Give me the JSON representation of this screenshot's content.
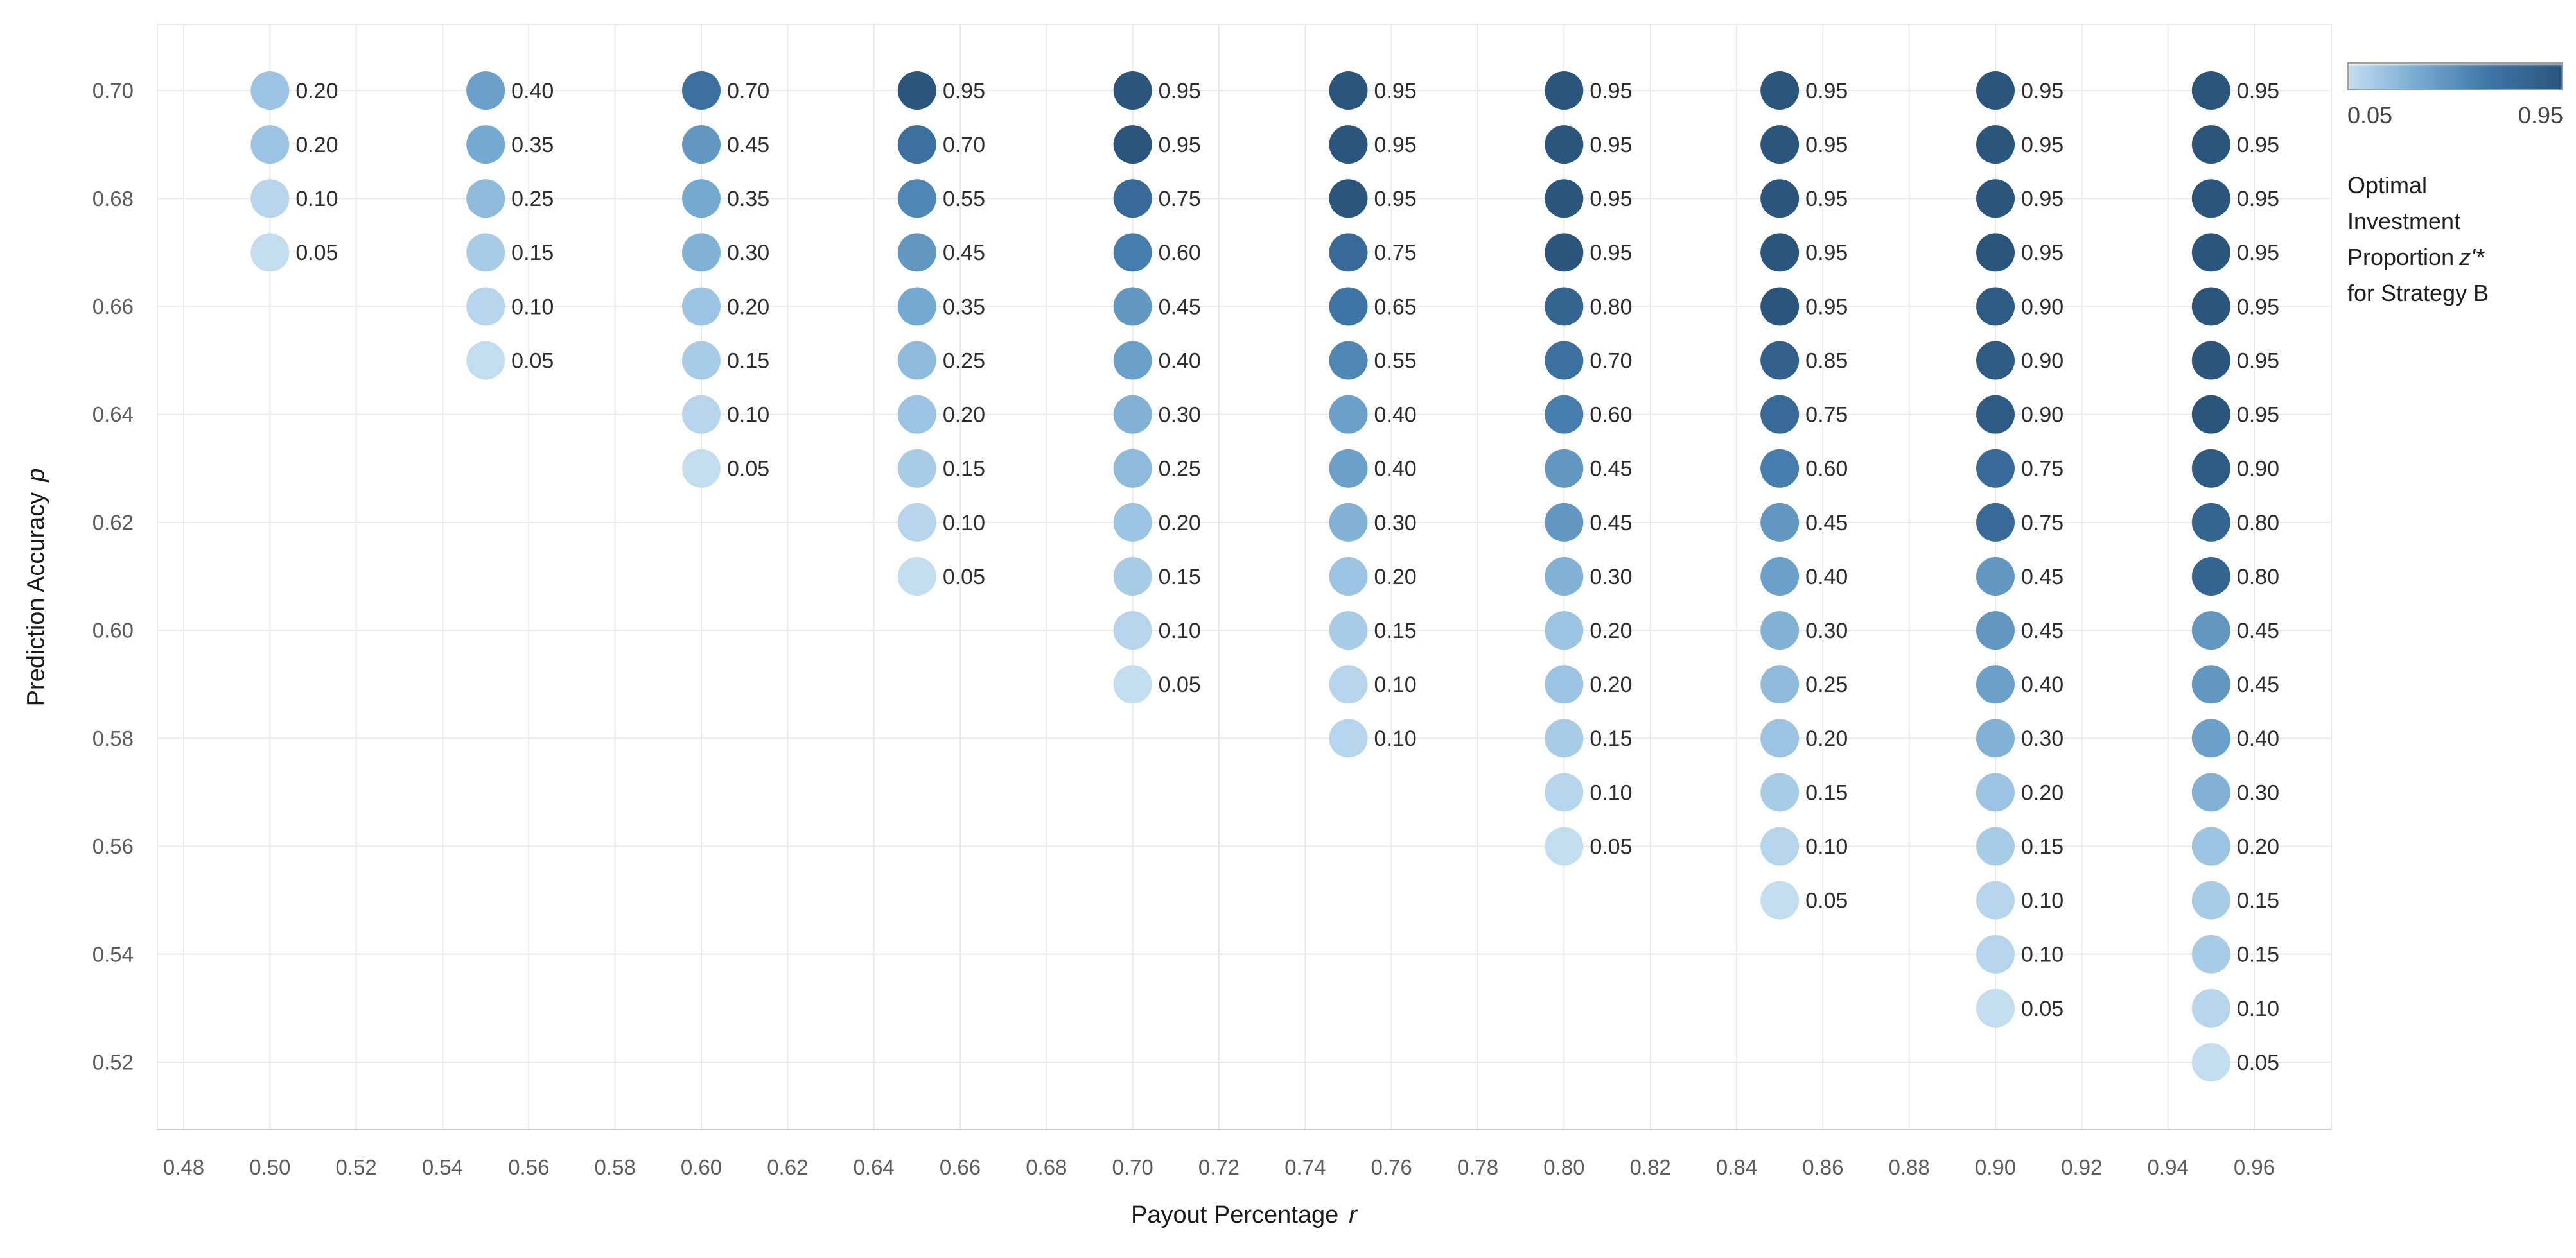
{
  "chart_data": {
    "type": "scatter",
    "description": "Labeled dot matrix of optimal investment proportion by payout percentage and prediction accuracy",
    "xlabel": {
      "text": "Payout Percentage",
      "symbol": "r"
    },
    "ylabel": {
      "text": "Prediction Accuracy",
      "symbol": "p"
    },
    "x_axis": {
      "min": 0.48,
      "max": 0.96,
      "tick_labels": [
        "0.48",
        "0.50",
        "0.52",
        "0.54",
        "0.56",
        "0.58",
        "0.60",
        "0.62",
        "0.64",
        "0.66",
        "0.68",
        "0.70",
        "0.72",
        "0.74",
        "0.76",
        "0.78",
        "0.80",
        "0.82",
        "0.84",
        "0.86",
        "0.88",
        "0.90",
        "0.92",
        "0.94",
        "0.96"
      ]
    },
    "y_axis": {
      "min": 0.52,
      "max": 0.7,
      "tick_labels": [
        "0.70",
        "0.68",
        "0.66",
        "0.64",
        "0.62",
        "0.60",
        "0.58",
        "0.56",
        "0.54",
        "0.52"
      ]
    },
    "grid": true,
    "p_step": 0.01,
    "marker_radius_px": 30,
    "columns": [
      {
        "r": 0.5,
        "p_top": 0.7,
        "z_values": [
          0.2,
          0.2,
          0.1,
          0.05
        ]
      },
      {
        "r": 0.55,
        "p_top": 0.7,
        "z_values": [
          0.4,
          0.35,
          0.25,
          0.15,
          0.1,
          0.05
        ]
      },
      {
        "r": 0.6,
        "p_top": 0.7,
        "z_values": [
          0.7,
          0.45,
          0.35,
          0.3,
          0.2,
          0.15,
          0.1,
          0.05
        ]
      },
      {
        "r": 0.65,
        "p_top": 0.7,
        "z_values": [
          0.95,
          0.7,
          0.55,
          0.45,
          0.35,
          0.25,
          0.2,
          0.15,
          0.1,
          0.05
        ]
      },
      {
        "r": 0.7,
        "p_top": 0.7,
        "z_values": [
          0.95,
          0.95,
          0.75,
          0.6,
          0.45,
          0.4,
          0.3,
          0.25,
          0.2,
          0.15,
          0.1,
          0.05
        ]
      },
      {
        "r": 0.75,
        "p_top": 0.7,
        "z_values": [
          0.95,
          0.95,
          0.95,
          0.75,
          0.65,
          0.55,
          0.4,
          0.4,
          0.3,
          0.2,
          0.15,
          0.1,
          0.1
        ]
      },
      {
        "r": 0.8,
        "p_top": 0.7,
        "z_values": [
          0.95,
          0.95,
          0.95,
          0.95,
          0.8,
          0.7,
          0.6,
          0.45,
          0.45,
          0.3,
          0.2,
          0.2,
          0.15,
          0.1,
          0.05
        ]
      },
      {
        "r": 0.85,
        "p_top": 0.7,
        "z_values": [
          0.95,
          0.95,
          0.95,
          0.95,
          0.95,
          0.85,
          0.75,
          0.6,
          0.45,
          0.4,
          0.3,
          0.25,
          0.2,
          0.15,
          0.1,
          0.05
        ]
      },
      {
        "r": 0.9,
        "p_top": 0.7,
        "z_values": [
          0.95,
          0.95,
          0.95,
          0.95,
          0.9,
          0.9,
          0.9,
          0.75,
          0.75,
          0.45,
          0.45,
          0.4,
          0.3,
          0.2,
          0.15,
          0.1,
          0.1,
          0.05
        ]
      },
      {
        "r": 0.95,
        "p_top": 0.7,
        "z_values": [
          0.95,
          0.95,
          0.95,
          0.95,
          0.95,
          0.95,
          0.95,
          0.9,
          0.8,
          0.8,
          0.45,
          0.45,
          0.4,
          0.3,
          0.2,
          0.15,
          0.15,
          0.1,
          0.05
        ]
      }
    ],
    "color_scale": {
      "stops": [
        {
          "v": 0.05,
          "c": "#c3ddf0"
        },
        {
          "v": 0.35,
          "c": "#74a9d1"
        },
        {
          "v": 0.65,
          "c": "#3d74a4"
        },
        {
          "v": 0.95,
          "c": "#2a567e"
        }
      ]
    },
    "style_colors": {
      "gridline": "#e9e9e9",
      "plot_border": "#ebebeb",
      "axis_line": "#c9c9c9",
      "tick_label": "#5c5c5c",
      "data_label": "#2d2d2d"
    }
  },
  "legend": {
    "min_label": "0.05",
    "max_label": "0.95",
    "title_line1": "Optimal",
    "title_line2": "Investment",
    "title_line3_prefix": "Proportion",
    "title_symbol": "z'*",
    "title_line4": "for Strategy B"
  }
}
